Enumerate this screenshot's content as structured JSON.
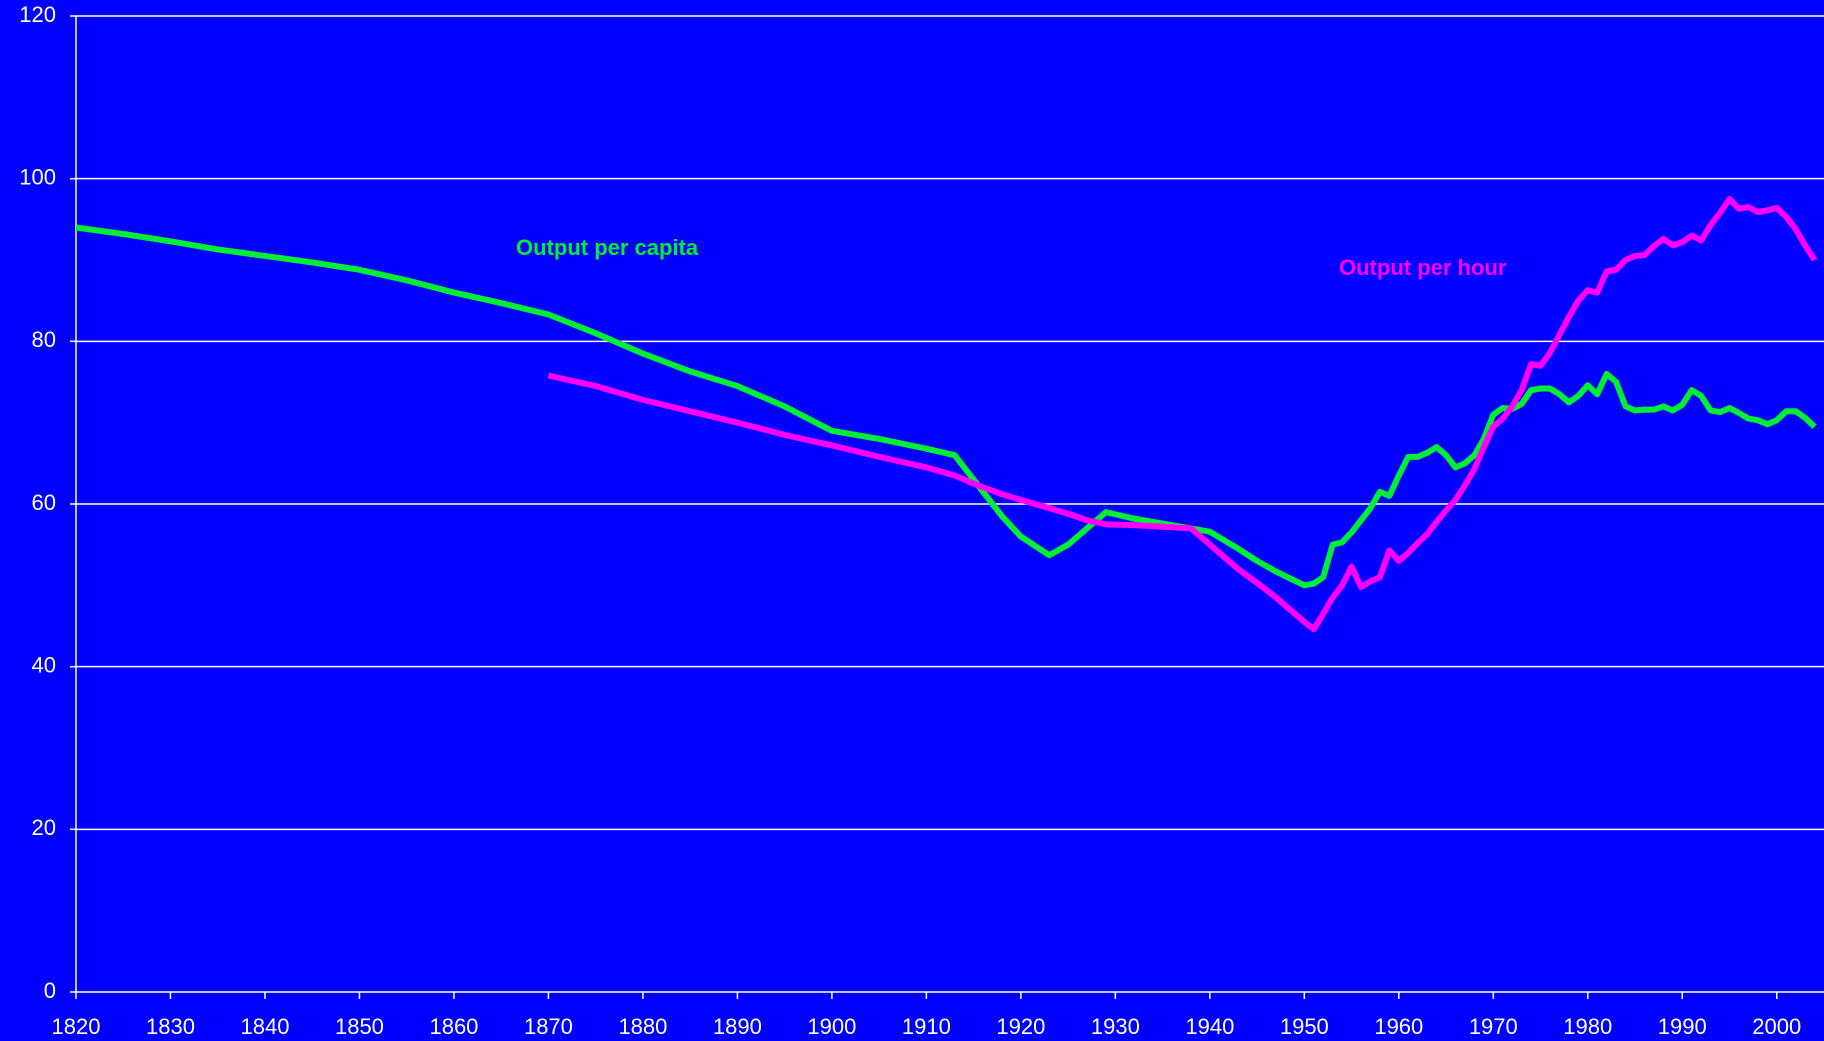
{
  "chart_data": {
    "type": "line",
    "x": [
      1820,
      1825,
      1830,
      1835,
      1840,
      1845,
      1850,
      1855,
      1860,
      1865,
      1870,
      1875,
      1880,
      1885,
      1890,
      1895,
      1900,
      1905,
      1910,
      1913,
      1915,
      1918,
      1920,
      1923,
      1925,
      1927,
      1929,
      1932,
      1935,
      1938,
      1940,
      1943,
      1945,
      1947,
      1950,
      1951,
      1952,
      1953,
      1954,
      1955,
      1956,
      1957,
      1958,
      1959,
      1960,
      1961,
      1962,
      1963,
      1964,
      1965,
      1966,
      1967,
      1968,
      1969,
      1970,
      1971,
      1972,
      1973,
      1974,
      1975,
      1976,
      1977,
      1978,
      1979,
      1980,
      1981,
      1982,
      1983,
      1984,
      1985,
      1986,
      1987,
      1988,
      1989,
      1990,
      1991,
      1992,
      1993,
      1994,
      1995,
      1996,
      1997,
      1998,
      1999,
      2000,
      2001,
      2002,
      2003,
      2004
    ],
    "series": [
      {
        "name": "Output per capita",
        "color": "#00ee33",
        "values": [
          94,
          93.2,
          92.3,
          91.3,
          90.5,
          89.7,
          88.8,
          87.5,
          86,
          84.7,
          83.3,
          81,
          78.5,
          76.3,
          74.5,
          72,
          69,
          68,
          66.8,
          66,
          63,
          58.5,
          56,
          53.7,
          55,
          57,
          59,
          58.2,
          57.6,
          57,
          56.6,
          54.5,
          53,
          51.7,
          50,
          50.2,
          51,
          55,
          55.3,
          56.5,
          58,
          59.5,
          61.5,
          61,
          63.5,
          65.8,
          65.8,
          66.3,
          67,
          66,
          64.5,
          65,
          66,
          68,
          71,
          71.8,
          71.7,
          72.3,
          74,
          74.2,
          74.2,
          73.5,
          72.5,
          73.3,
          74.6,
          73.5,
          76,
          75,
          72,
          71.5,
          71.6,
          71.6,
          72,
          71.5,
          72.2,
          74,
          73.3,
          71.5,
          71.3,
          71.8,
          71.2,
          70.5,
          70.3,
          69.8,
          70.3,
          71.4,
          71.4,
          70.6,
          69.5
        ]
      },
      {
        "name": "Output per hour",
        "color": "#ff00ff",
        "values": [
          null,
          null,
          null,
          null,
          null,
          null,
          null,
          null,
          null,
          null,
          75.8,
          74.5,
          72.8,
          71.4,
          70,
          68.5,
          67.2,
          65.8,
          64.5,
          63.5,
          62.5,
          61.2,
          60.5,
          59.5,
          58.8,
          58,
          57.5,
          57.4,
          57.2,
          57,
          55,
          52,
          50.3,
          48.5,
          45.5,
          44.6,
          46.5,
          48.5,
          50,
          52.3,
          49.8,
          50.5,
          51,
          54.3,
          53,
          54,
          55.2,
          56.3,
          57.8,
          59.2,
          60.5,
          62.3,
          64.3,
          67,
          69.5,
          70.5,
          72,
          74,
          77.2,
          77,
          78.6,
          80.8,
          83,
          85,
          86.3,
          86,
          88.6,
          88.8,
          90,
          90.5,
          90.6,
          91.7,
          92.6,
          91.8,
          92.2,
          93,
          92.4,
          94.3,
          95.8,
          97.5,
          96.3,
          96.5,
          95.9,
          96.1,
          96.4,
          95.3,
          93.8,
          91.8,
          90
        ]
      }
    ],
    "xlim": [
      1820,
      2005
    ],
    "xticks": [
      1820,
      1830,
      1840,
      1850,
      1860,
      1870,
      1880,
      1890,
      1900,
      1910,
      1920,
      1930,
      1940,
      1950,
      1960,
      1970,
      1980,
      1990,
      2000
    ],
    "ylim": [
      0,
      120
    ],
    "yticks": [
      0,
      20,
      40,
      60,
      80,
      100,
      120
    ],
    "grid": true
  }
}
